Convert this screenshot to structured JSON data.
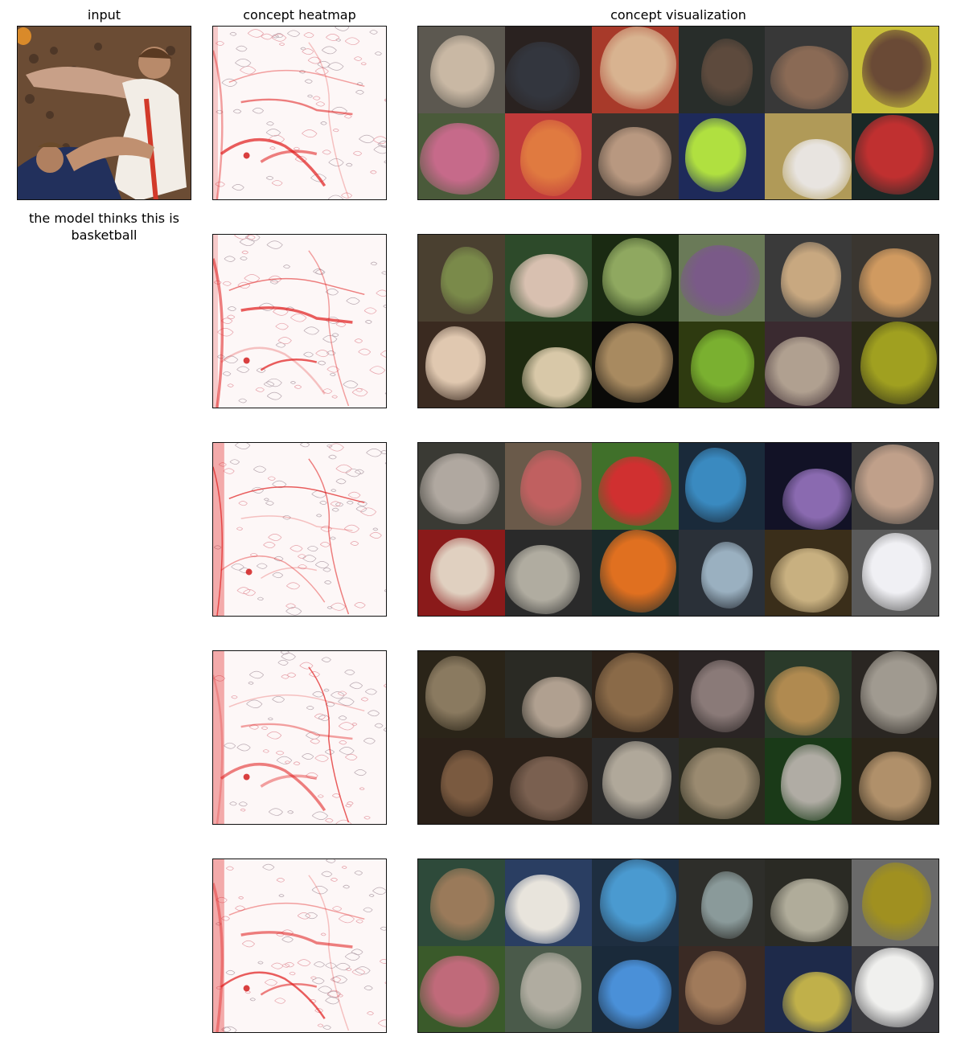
{
  "headers": {
    "input": "input",
    "heatmap": "concept heatmap",
    "visualization": "concept visualization"
  },
  "input": {
    "caption": "the model thinks this is basketball"
  },
  "concepts": [
    {
      "id": 1,
      "tiles": [
        {
          "bg": "#5c5850",
          "fg": "#c9b8a4"
        },
        {
          "bg": "#2a2220",
          "fg": "#33363e"
        },
        {
          "bg": "#a83a2a",
          "fg": "#d8b390"
        },
        {
          "bg": "#282d2a",
          "fg": "#5d4a3d"
        },
        {
          "bg": "#383838",
          "fg": "#8a6a55"
        },
        {
          "bg": "#c9c03a",
          "fg": "#6a4a36"
        },
        {
          "bg": "#4a5a3a",
          "fg": "#c66a8a"
        },
        {
          "bg": "#c03a3a",
          "fg": "#e07a40"
        },
        {
          "bg": "#3a322c",
          "fg": "#b89880"
        },
        {
          "bg": "#1e2a5a",
          "fg": "#b0e040"
        },
        {
          "bg": "#b09a58",
          "fg": "#e8e4e0"
        },
        {
          "bg": "#1a2826",
          "fg": "#c03030"
        }
      ]
    },
    {
      "id": 2,
      "tiles": [
        {
          "bg": "#4a4030",
          "fg": "#7a8a4a"
        },
        {
          "bg": "#2d4a2a",
          "fg": "#d8c0b0"
        },
        {
          "bg": "#1a2a12",
          "fg": "#8fa860"
        },
        {
          "bg": "#6a7a58",
          "fg": "#7a5a88"
        },
        {
          "bg": "#3a3a3a",
          "fg": "#c8a880"
        },
        {
          "bg": "#3a3630",
          "fg": "#d09a60"
        },
        {
          "bg": "#3a2a20",
          "fg": "#e0c8b0"
        },
        {
          "bg": "#1e2a10",
          "fg": "#d8c8a8"
        },
        {
          "bg": "#0a0a08",
          "fg": "#a88a60"
        },
        {
          "bg": "#2e3a10",
          "fg": "#7ab030"
        },
        {
          "bg": "#3a2a30",
          "fg": "#b0a090"
        },
        {
          "bg": "#2a2a18",
          "fg": "#a0a020"
        }
      ]
    },
    {
      "id": 3,
      "tiles": [
        {
          "bg": "#3a3a34",
          "fg": "#b0a8a0"
        },
        {
          "bg": "#6a5a4a",
          "fg": "#c06060"
        },
        {
          "bg": "#40702a",
          "fg": "#d03030"
        },
        {
          "bg": "#1a2a3a",
          "fg": "#3a8ac0"
        },
        {
          "bg": "#121226",
          "fg": "#8a6ab0"
        },
        {
          "bg": "#3a3a3a",
          "fg": "#c0a08a"
        },
        {
          "bg": "#8a1a1a",
          "fg": "#e0d0c0"
        },
        {
          "bg": "#2a2a2a",
          "fg": "#b0aca0"
        },
        {
          "bg": "#1a2a2a",
          "fg": "#e07020"
        },
        {
          "bg": "#2a3038",
          "fg": "#9ab0c0"
        },
        {
          "bg": "#3a2e1a",
          "fg": "#c8b080"
        },
        {
          "bg": "#5a5a5a",
          "fg": "#f0f0f4"
        }
      ]
    },
    {
      "id": 4,
      "tiles": [
        {
          "bg": "#2a2418",
          "fg": "#8a7a60"
        },
        {
          "bg": "#2a2a24",
          "fg": "#b0a090"
        },
        {
          "bg": "#2a2018",
          "fg": "#8a6a48"
        },
        {
          "bg": "#2a2424",
          "fg": "#8a7a78"
        },
        {
          "bg": "#2a3a2a",
          "fg": "#b08a50"
        },
        {
          "bg": "#2a2622",
          "fg": "#a09a90"
        },
        {
          "bg": "#2a2018",
          "fg": "#7a5a40"
        },
        {
          "bg": "#2a2018",
          "fg": "#7a6050"
        },
        {
          "bg": "#2a2a2a",
          "fg": "#b0a89a"
        },
        {
          "bg": "#2a2a1e",
          "fg": "#9a8a70"
        },
        {
          "bg": "#1a3a18",
          "fg": "#b0aca4"
        },
        {
          "bg": "#2a2418",
          "fg": "#b0906a"
        }
      ]
    },
    {
      "id": 5,
      "tiles": [
        {
          "bg": "#2e4a3a",
          "fg": "#9a7a5a"
        },
        {
          "bg": "#2a3e62",
          "fg": "#e8e4dc"
        },
        {
          "bg": "#1e2e40",
          "fg": "#4a9ad0"
        },
        {
          "bg": "#2e2e2a",
          "fg": "#8a9a9a"
        },
        {
          "bg": "#2a2a24",
          "fg": "#b0ac9a"
        },
        {
          "bg": "#6a6a6a",
          "fg": "#a09020"
        },
        {
          "bg": "#3a5a2a",
          "fg": "#c06a7a"
        },
        {
          "bg": "#4a5a4a",
          "fg": "#b0aca0"
        },
        {
          "bg": "#1a2a3a",
          "fg": "#4a90d8"
        },
        {
          "bg": "#3a2a24",
          "fg": "#a07a5a"
        },
        {
          "bg": "#1e2a4a",
          "fg": "#c0b04a"
        },
        {
          "bg": "#3a3a3e",
          "fg": "#f0f0ee"
        }
      ]
    }
  ]
}
